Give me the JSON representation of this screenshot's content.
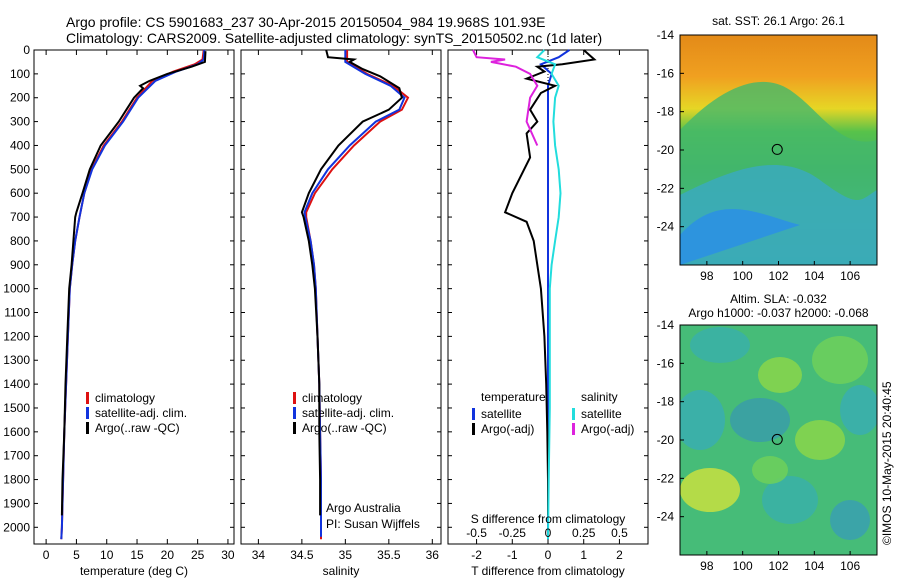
{
  "header": {
    "line1": "Argo profile: CS 5901683_237 30-Apr-2015 20150504_984 19.968S 101.93E",
    "line2": "Climatology: CARS2009. Satellite-adjusted climatology: synTS_20150502.nc (1d later)"
  },
  "stamp": "©IMOS 10-May-2015 20:40:45",
  "colors": {
    "climatology": "#dd1111",
    "satellite": "#1133dd",
    "argo": "#000000",
    "sat_salinity": "#22dddd",
    "argo_salinity": "#dd22dd"
  },
  "chart_data": [
    {
      "type": "line",
      "id": "temperature",
      "xlabel": "temperature (deg C)",
      "xlim": [
        -2,
        31
      ],
      "xticks": [
        0,
        5,
        10,
        15,
        20,
        25,
        30
      ],
      "ylim": [
        2070,
        0
      ],
      "yticks": [
        0,
        100,
        200,
        300,
        400,
        500,
        600,
        700,
        800,
        900,
        1000,
        1100,
        1200,
        1300,
        1400,
        1500,
        1600,
        1700,
        1800,
        1900,
        2000
      ],
      "legend": [
        "climatology",
        "satellite-adj. clim.",
        "Argo(..raw -QC)"
      ],
      "series": [
        {
          "name": "climatology",
          "color": "#dd1111",
          "points": [
            [
              26.0,
              0
            ],
            [
              25.8,
              40
            ],
            [
              24.5,
              60
            ],
            [
              21.0,
              90
            ],
            [
              17.5,
              130
            ],
            [
              15.0,
              200
            ],
            [
              12.5,
              300
            ],
            [
              9.5,
              400
            ],
            [
              7.5,
              500
            ],
            [
              6.3,
              600
            ],
            [
              5.5,
              700
            ],
            [
              4.8,
              800
            ],
            [
              4.3,
              900
            ],
            [
              3.9,
              1000
            ],
            [
              3.6,
              1200
            ],
            [
              3.3,
              1400
            ],
            [
              3.0,
              1600
            ],
            [
              2.8,
              1800
            ],
            [
              2.6,
              2000
            ],
            [
              2.5,
              2050
            ]
          ]
        },
        {
          "name": "satellite-adj. clim.",
          "color": "#1133dd",
          "points": [
            [
              26.1,
              0
            ],
            [
              26.0,
              40
            ],
            [
              25.0,
              60
            ],
            [
              21.5,
              90
            ],
            [
              18.0,
              130
            ],
            [
              15.2,
              200
            ],
            [
              12.7,
              300
            ],
            [
              9.7,
              400
            ],
            [
              7.6,
              500
            ],
            [
              6.3,
              600
            ],
            [
              5.5,
              700
            ],
            [
              4.8,
              800
            ],
            [
              4.3,
              900
            ],
            [
              3.9,
              1000
            ],
            [
              3.6,
              1200
            ],
            [
              3.3,
              1400
            ],
            [
              3.0,
              1600
            ],
            [
              2.8,
              1800
            ],
            [
              2.6,
              2000
            ],
            [
              2.5,
              2050
            ]
          ]
        },
        {
          "name": "Argo(..raw -QC)",
          "color": "#000000",
          "points": [
            [
              26.3,
              5
            ],
            [
              26.2,
              50
            ],
            [
              24.0,
              70
            ],
            [
              20.0,
              100
            ],
            [
              17.0,
              130
            ],
            [
              15.5,
              150
            ],
            [
              16.0,
              160
            ],
            [
              14.5,
              200
            ],
            [
              12.0,
              300
            ],
            [
              9.0,
              400
            ],
            [
              7.2,
              500
            ],
            [
              6.0,
              600
            ],
            [
              5.0,
              680
            ],
            [
              4.8,
              700
            ],
            [
              4.5,
              800
            ],
            [
              4.2,
              900
            ],
            [
              3.8,
              1000
            ],
            [
              3.5,
              1200
            ],
            [
              3.2,
              1400
            ],
            [
              3.0,
              1600
            ],
            [
              2.7,
              1800
            ],
            [
              2.6,
              1950
            ]
          ]
        }
      ]
    },
    {
      "type": "line",
      "id": "salinity",
      "xlabel": "salinity",
      "xlim": [
        33.8,
        36.1
      ],
      "xticks": [
        34,
        34.5,
        35,
        35.5,
        36
      ],
      "ylim": [
        2070,
        0
      ],
      "legend": [
        "climatology",
        "satellite-adj. clim.",
        "Argo(..raw -QC)"
      ],
      "annotation": [
        "Argo Australia",
        "PI: Susan Wijffels"
      ],
      "series": [
        {
          "name": "climatology",
          "color": "#dd1111",
          "points": [
            [
              35.02,
              0
            ],
            [
              35.02,
              50
            ],
            [
              35.25,
              100
            ],
            [
              35.55,
              150
            ],
            [
              35.72,
              200
            ],
            [
              35.65,
              250
            ],
            [
              35.4,
              300
            ],
            [
              35.1,
              400
            ],
            [
              34.85,
              500
            ],
            [
              34.65,
              600
            ],
            [
              34.55,
              680
            ],
            [
              34.55,
              700
            ],
            [
              34.6,
              800
            ],
            [
              34.64,
              900
            ],
            [
              34.66,
              1000
            ],
            [
              34.68,
              1200
            ],
            [
              34.7,
              1400
            ],
            [
              34.71,
              1600
            ],
            [
              34.72,
              1800
            ],
            [
              34.72,
              2000
            ],
            [
              34.72,
              2050
            ]
          ]
        },
        {
          "name": "satellite-adj. clim.",
          "color": "#1133dd",
          "points": [
            [
              35.0,
              0
            ],
            [
              35.0,
              50
            ],
            [
              35.23,
              100
            ],
            [
              35.52,
              150
            ],
            [
              35.68,
              200
            ],
            [
              35.62,
              250
            ],
            [
              35.35,
              300
            ],
            [
              35.05,
              400
            ],
            [
              34.8,
              500
            ],
            [
              34.62,
              600
            ],
            [
              34.53,
              680
            ],
            [
              34.54,
              700
            ],
            [
              34.6,
              800
            ],
            [
              34.64,
              900
            ],
            [
              34.66,
              1000
            ],
            [
              34.68,
              1200
            ],
            [
              34.7,
              1400
            ],
            [
              34.71,
              1600
            ],
            [
              34.72,
              1800
            ],
            [
              34.72,
              2000
            ],
            [
              34.72,
              2040
            ]
          ]
        },
        {
          "name": "Argo(..raw -QC)",
          "color": "#000000",
          "points": [
            [
              34.78,
              0
            ],
            [
              34.8,
              30
            ],
            [
              35.1,
              40
            ],
            [
              35.05,
              50
            ],
            [
              35.2,
              80
            ],
            [
              35.4,
              110
            ],
            [
              35.62,
              160
            ],
            [
              35.65,
              200
            ],
            [
              35.5,
              250
            ],
            [
              35.2,
              300
            ],
            [
              34.92,
              400
            ],
            [
              34.72,
              500
            ],
            [
              34.58,
              600
            ],
            [
              34.5,
              680
            ],
            [
              34.52,
              700
            ],
            [
              34.58,
              800
            ],
            [
              34.62,
              900
            ],
            [
              34.65,
              1000
            ],
            [
              34.68,
              1200
            ],
            [
              34.7,
              1400
            ],
            [
              34.7,
              1600
            ],
            [
              34.71,
              1800
            ],
            [
              34.71,
              1950
            ]
          ]
        }
      ]
    },
    {
      "type": "line",
      "id": "difference",
      "xlabel": "T difference from climatology",
      "xlabel_top": "S difference from climatology",
      "xlim": [
        -2.8,
        2.8
      ],
      "xticks": [
        -2,
        -1,
        0,
        1,
        2
      ],
      "xticks_top": [
        "-0.5",
        "-0.25",
        "0",
        "0.25",
        "0.5"
      ],
      "xticks_top_pos": [
        -2,
        -1,
        0,
        1,
        2
      ],
      "ylim": [
        2070,
        0
      ],
      "legend_left": {
        "heading": "temperature",
        "items": [
          "satellite",
          "Argo(-adj)"
        ]
      },
      "legend_right": {
        "heading": "salinity",
        "items": [
          "satellite",
          "Argo(-adj)"
        ]
      },
      "series": [
        {
          "name": "temperature satellite",
          "color": "#1133dd",
          "points": [
            [
              0.6,
              0
            ],
            [
              0.3,
              30
            ],
            [
              -0.2,
              60
            ],
            [
              0.1,
              100
            ],
            [
              0.0,
              150
            ],
            [
              0.0,
              200
            ],
            [
              0.0,
              300
            ],
            [
              0.0,
              400
            ],
            [
              0.0,
              500
            ],
            [
              0.0,
              600
            ],
            [
              0.0,
              800
            ],
            [
              0.0,
              1000
            ],
            [
              0.0,
              1200
            ],
            [
              0.0,
              1500
            ],
            [
              0.0,
              1800
            ],
            [
              0.0,
              2050
            ]
          ]
        },
        {
          "name": "temperature Argo(-adj)",
          "color": "#000000",
          "points": [
            [
              1.0,
              0
            ],
            [
              1.3,
              40
            ],
            [
              0.4,
              60
            ],
            [
              -0.3,
              70
            ],
            [
              -0.1,
              90
            ],
            [
              -0.6,
              120
            ],
            [
              0.2,
              150
            ],
            [
              -0.2,
              180
            ],
            [
              -0.5,
              250
            ],
            [
              -0.3,
              300
            ],
            [
              -0.6,
              350
            ],
            [
              -0.5,
              450
            ],
            [
              -1.0,
              600
            ],
            [
              -1.2,
              680
            ],
            [
              -0.6,
              720
            ],
            [
              -0.4,
              800
            ],
            [
              -0.3,
              900
            ],
            [
              -0.2,
              1000
            ],
            [
              -0.1,
              1200
            ],
            [
              -0.05,
              1400
            ],
            [
              -0.02,
              1600
            ],
            [
              0.0,
              1800
            ],
            [
              0.0,
              1950
            ]
          ]
        },
        {
          "name": "salinity satellite",
          "color": "#22dddd",
          "points": [
            [
              -0.1,
              0
            ],
            [
              -0.3,
              30
            ],
            [
              0.2,
              60
            ],
            [
              0.1,
              100
            ],
            [
              0.3,
              150
            ],
            [
              0.2,
              200
            ],
            [
              0.15,
              300
            ],
            [
              0.2,
              400
            ],
            [
              0.3,
              500
            ],
            [
              0.35,
              600
            ],
            [
              0.3,
              700
            ],
            [
              0.2,
              800
            ],
            [
              0.1,
              900
            ],
            [
              0.05,
              1000
            ],
            [
              0.05,
              1200
            ],
            [
              0.05,
              1500
            ],
            [
              0.02,
              1800
            ],
            [
              0.0,
              2050
            ]
          ]
        },
        {
          "name": "salinity Argo(-adj)",
          "color": "#dd22dd",
          "points": [
            [
              -2.1,
              0
            ],
            [
              -2.0,
              30
            ],
            [
              -1.2,
              40
            ],
            [
              -1.6,
              50
            ],
            [
              -0.9,
              70
            ],
            [
              -0.5,
              100
            ],
            [
              -0.3,
              150
            ],
            [
              -0.5,
              200
            ],
            [
              -0.6,
              300
            ],
            [
              -0.3,
              400
            ]
          ]
        }
      ]
    },
    {
      "type": "heatmap",
      "id": "sst-map",
      "title": "sat. SST: 26.1  Argo: 26.1",
      "xlim": [
        96.5,
        107.5
      ],
      "ylim": [
        -26,
        -14
      ],
      "xticks": [
        98,
        100,
        102,
        104,
        106
      ],
      "yticks": [
        -14,
        -16,
        -18,
        -20,
        -22,
        -24
      ],
      "marker": [
        101.93,
        -19.968
      ]
    },
    {
      "type": "heatmap",
      "id": "sla-map",
      "title": [
        "Altim. SLA: -0.032",
        "Argo h1000: -0.037 h2000: -0.068"
      ],
      "xlim": [
        96.5,
        107.5
      ],
      "ylim": [
        -26,
        -14
      ],
      "xticks": [
        98,
        100,
        102,
        104,
        106
      ],
      "yticks": [
        -14,
        -16,
        -18,
        -20,
        -22,
        -24
      ],
      "marker": [
        101.93,
        -19.968
      ]
    }
  ]
}
